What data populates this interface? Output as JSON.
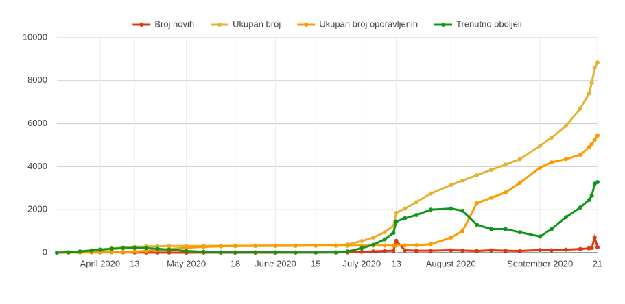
{
  "chart_data": {
    "type": "line",
    "x": [
      "2020-03-17",
      "2020-03-21",
      "2020-03-25",
      "2020-03-29",
      "2020-04-01",
      "2020-04-05",
      "2020-04-09",
      "2020-04-13",
      "2020-04-17",
      "2020-04-21",
      "2020-04-25",
      "2020-05-01",
      "2020-05-07",
      "2020-05-13",
      "2020-05-18",
      "2020-05-25",
      "2020-06-01",
      "2020-06-08",
      "2020-06-15",
      "2020-06-22",
      "2020-06-26",
      "2020-07-01",
      "2020-07-05",
      "2020-07-09",
      "2020-07-12",
      "2020-07-13",
      "2020-07-16",
      "2020-07-20",
      "2020-07-25",
      "2020-08-01",
      "2020-08-05",
      "2020-08-10",
      "2020-08-15",
      "2020-08-20",
      "2020-08-25",
      "2020-09-01",
      "2020-09-05",
      "2020-09-10",
      "2020-09-15",
      "2020-09-18",
      "2020-09-19",
      "2020-09-20",
      "2020-09-21"
    ],
    "series": [
      {
        "name": "Broj novih",
        "color": "#dc3912",
        "values": [
          0,
          5,
          10,
          12,
          10,
          15,
          10,
          8,
          5,
          3,
          2,
          1,
          2,
          1,
          0,
          1,
          1,
          2,
          3,
          8,
          15,
          40,
          60,
          80,
          90,
          550,
          110,
          90,
          90,
          110,
          100,
          80,
          110,
          90,
          80,
          120,
          110,
          140,
          170,
          200,
          220,
          700,
          250
        ]
      },
      {
        "name": "Ukupan broj",
        "color": "#e6b034",
        "values": [
          0,
          20,
          60,
          110,
          150,
          200,
          240,
          270,
          290,
          300,
          310,
          310,
          315,
          320,
          320,
          325,
          330,
          330,
          335,
          340,
          380,
          540,
          700,
          950,
          1250,
          1850,
          2050,
          2350,
          2750,
          3150,
          3350,
          3600,
          3850,
          4100,
          4350,
          4970,
          5350,
          5900,
          6700,
          7400,
          7900,
          8600,
          8850
        ]
      },
      {
        "name": "Ukupan broj oporavljenih",
        "color": "#ff9900",
        "values": [
          0,
          0,
          5,
          10,
          15,
          20,
          30,
          50,
          80,
          120,
          170,
          230,
          270,
          300,
          305,
          310,
          315,
          320,
          325,
          325,
          325,
          330,
          330,
          330,
          330,
          330,
          335,
          350,
          390,
          700,
          1000,
          2300,
          2550,
          2800,
          3250,
          3950,
          4200,
          4350,
          4550,
          4900,
          5050,
          5250,
          5450
        ]
      },
      {
        "name": "Trenutno oboljeli",
        "color": "#109618",
        "values": [
          0,
          20,
          55,
          100,
          135,
          180,
          210,
          220,
          210,
          180,
          140,
          80,
          45,
          20,
          15,
          15,
          15,
          10,
          10,
          15,
          55,
          210,
          370,
          620,
          920,
          1450,
          1600,
          1750,
          2000,
          2050,
          1950,
          1300,
          1100,
          1100,
          950,
          750,
          1100,
          1650,
          2100,
          2450,
          2650,
          3200,
          3280
        ]
      }
    ],
    "xlim": [
      "2020-03-17",
      "2020-09-21"
    ],
    "xticks": [
      {
        "value": "2020-04-01",
        "label": "April 2020"
      },
      {
        "value": "2020-04-13",
        "label": "13"
      },
      {
        "value": "2020-05-01",
        "label": "May 2020"
      },
      {
        "value": "2020-05-18",
        "label": "18"
      },
      {
        "value": "2020-06-01",
        "label": "June 2020"
      },
      {
        "value": "2020-06-15",
        "label": "15"
      },
      {
        "value": "2020-07-01",
        "label": "July 2020"
      },
      {
        "value": "2020-07-13",
        "label": "13"
      },
      {
        "value": "2020-08-01",
        "label": "August 2020"
      },
      {
        "value": "2020-09-01",
        "label": "September 2020"
      },
      {
        "value": "2020-09-21",
        "label": "21"
      }
    ],
    "ylim": [
      0,
      10000
    ],
    "yticks": [
      0,
      2000,
      4000,
      6000,
      8000,
      10000
    ],
    "grid": true,
    "legend": "top"
  }
}
